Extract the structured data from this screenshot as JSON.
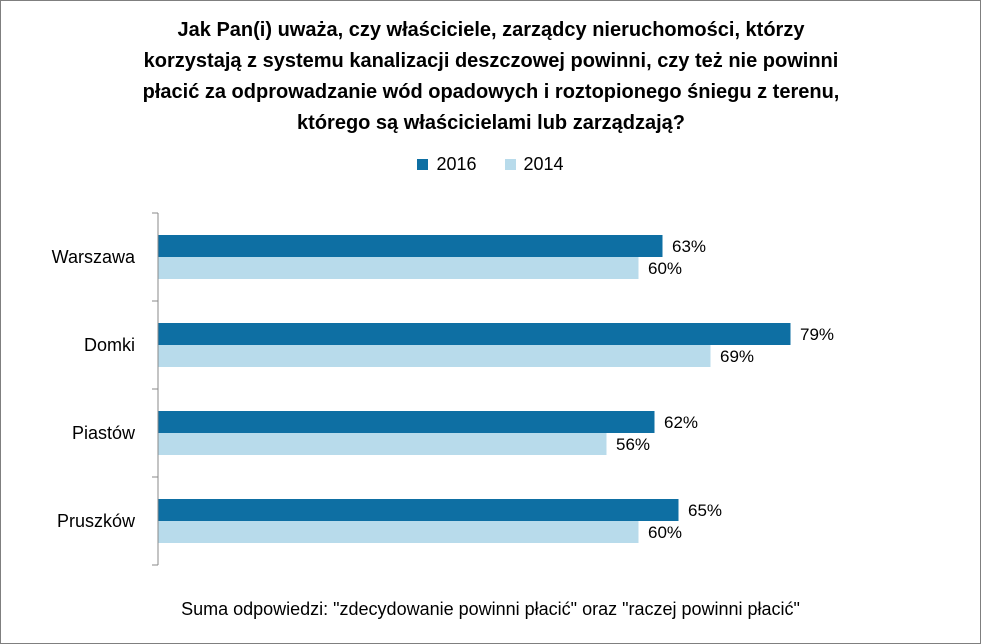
{
  "title_lines": [
    "Jak Pan(i) uważa, czy właściciele, zarządcy nieruchomości, którzy",
    "korzystają z systemu kanalizacji deszczowej powinni, czy też nie powinni",
    "płacić za odprowadzanie wód opadowych i roztopionego śniegu z terenu,",
    "którego są właścicielami lub zarządzają?"
  ],
  "note": "Suma odpowiedzi: \"zdecydowanie powinni płacić\" oraz \"raczej powinni płacić\"",
  "chart_data": {
    "type": "bar",
    "orientation": "horizontal",
    "categories": [
      "Warszawa",
      "Domki",
      "Piastów",
      "Pruszków"
    ],
    "series": [
      {
        "name": "2016",
        "color": "#0e6fa3",
        "values": [
          63,
          79,
          62,
          65
        ],
        "labels": [
          "63%",
          "79%",
          "62%",
          "65%"
        ]
      },
      {
        "name": "2014",
        "color": "#b8dbeb",
        "values": [
          60,
          69,
          56,
          60
        ],
        "labels": [
          "60%",
          "69%",
          "56%",
          "60%"
        ]
      }
    ],
    "value_unit": "%",
    "xlim": [
      0,
      100
    ],
    "grid": false,
    "legend_position": "top"
  }
}
